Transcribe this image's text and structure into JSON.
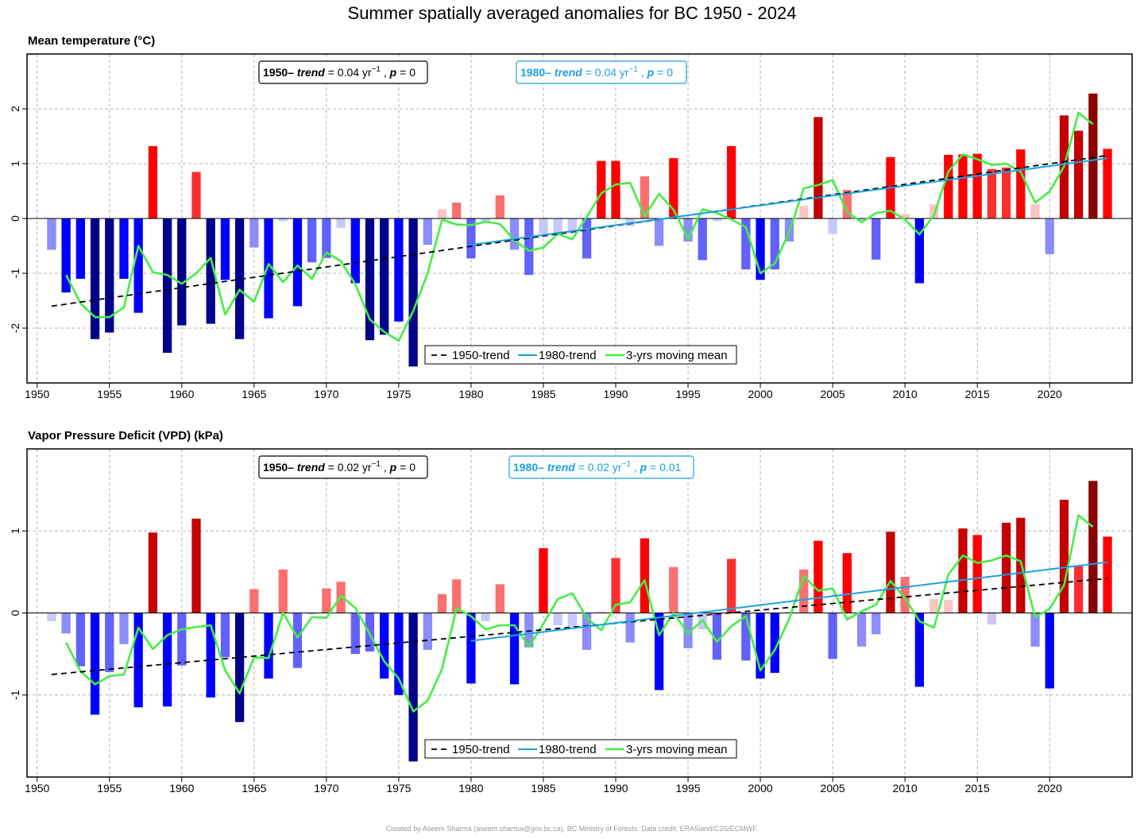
{
  "page": {
    "title": "Summer spatially averaged anomalies for BC 1950 - 2024",
    "credit": "Created by Aseem Sharma (aseem.sharma@gov.bc.ca), BC Ministry of Forests. Data credit: ERA5land/C3S/ECMWF."
  },
  "colors": {
    "trend_1950": "#000000",
    "trend_1980": "#1ba1e2",
    "moving_mean": "#44ee44",
    "neg_palette": [
      "#c8c8f8",
      "#8c8cfa",
      "#6262fa",
      "#0000ff",
      "#00008b"
    ],
    "pos_palette": [
      "#fac4c4",
      "#fa7070",
      "#fa3030",
      "#ff0000",
      "#c40000",
      "#8b0000"
    ]
  },
  "chart_data": [
    {
      "type": "bar",
      "title": "Mean temperature  (°C)",
      "xlim": [
        1949.3,
        2025.7
      ],
      "ylim": [
        -3.0,
        3.0
      ],
      "xticks": [
        1950,
        1955,
        1960,
        1965,
        1970,
        1975,
        1980,
        1985,
        1990,
        1995,
        2000,
        2005,
        2010,
        2015,
        2020
      ],
      "yticks": [
        -2,
        -1,
        0,
        1,
        2
      ],
      "grid": true,
      "x": [
        1951,
        1952,
        1953,
        1954,
        1955,
        1956,
        1957,
        1958,
        1959,
        1960,
        1961,
        1962,
        1963,
        1964,
        1965,
        1966,
        1967,
        1968,
        1969,
        1970,
        1971,
        1972,
        1973,
        1974,
        1975,
        1976,
        1977,
        1978,
        1979,
        1980,
        1981,
        1982,
        1983,
        1984,
        1985,
        1986,
        1987,
        1988,
        1989,
        1990,
        1991,
        1992,
        1993,
        1994,
        1995,
        1996,
        1997,
        1998,
        1999,
        2000,
        2001,
        2002,
        2003,
        2004,
        2005,
        2006,
        2007,
        2008,
        2009,
        2010,
        2011,
        2012,
        2013,
        2014,
        2015,
        2016,
        2017,
        2018,
        2019,
        2020,
        2021,
        2022,
        2023,
        2024
      ],
      "values": [
        -0.57,
        -1.35,
        -1.1,
        -2.2,
        -2.08,
        -1.1,
        -1.72,
        1.32,
        -2.45,
        -1.95,
        0.85,
        -1.92,
        -1.12,
        -2.2,
        -0.53,
        -1.82,
        -0.05,
        -1.6,
        -0.8,
        -0.72,
        -0.17,
        -1.18,
        -2.22,
        -2.12,
        -1.88,
        -2.7,
        -0.48,
        0.17,
        0.29,
        -0.73,
        -0.08,
        0.42,
        -0.57,
        -1.03,
        -0.28,
        -0.3,
        -0.27,
        -0.73,
        1.05,
        1.05,
        -0.14,
        0.77,
        -0.5,
        1.1,
        -0.42,
        -0.76,
        -0.05,
        1.32,
        -0.93,
        -1.12,
        -0.93,
        -0.42,
        0.23,
        1.85,
        -0.28,
        0.52,
        -0.05,
        -0.75,
        1.12,
        0.08,
        -1.18,
        0.26,
        1.16,
        1.17,
        1.18,
        0.9,
        0.93,
        1.26,
        0.26,
        -0.65,
        1.88,
        1.6,
        2.28,
        1.27
      ],
      "moving_mean": [
        null,
        -1.03,
        -1.55,
        -1.8,
        -1.8,
        -1.62,
        -0.5,
        -0.98,
        -1.03,
        -1.19,
        -1.0,
        -0.72,
        -1.75,
        -1.3,
        -1.52,
        -0.83,
        -1.16,
        -0.86,
        -1.1,
        -0.62,
        -0.78,
        -1.2,
        -1.84,
        -2.07,
        -2.23,
        -1.69,
        -1.0,
        -0.02,
        -0.11,
        -0.12,
        -0.06,
        -0.1,
        -0.4,
        -0.59,
        -0.53,
        -0.28,
        -0.38,
        0.03,
        0.46,
        0.62,
        0.65,
        0.04,
        0.45,
        0.16,
        -0.37,
        0.17,
        0.1,
        -0.02,
        -0.16,
        -1.0,
        -0.82,
        -0.24,
        0.55,
        0.61,
        0.7,
        0.12,
        -0.07,
        0.1,
        0.14,
        -0.02,
        -0.29,
        0.06,
        0.86,
        1.17,
        1.08,
        0.98,
        1.0,
        0.85,
        0.29,
        0.49,
        0.95,
        1.93,
        1.72,
        null
      ],
      "trend_1950": {
        "x": [
          1951,
          2024
        ],
        "y": [
          -1.6,
          1.15
        ]
      },
      "trend_1980": {
        "x": [
          1980,
          2024
        ],
        "y": [
          -0.48,
          1.1
        ]
      },
      "annotations": [
        {
          "prefix": "1950–",
          "trend": "0.04",
          "p": "0"
        },
        {
          "prefix": "1980–",
          "trend": "0.04",
          "p": "0"
        }
      ],
      "legend": {
        "placement": "bottom-right",
        "items": [
          "1950-trend",
          "1980-trend",
          "3-yrs moving mean"
        ]
      }
    },
    {
      "type": "bar",
      "title": "Vapor Pressure Deficit (VPD)  (kPa)",
      "xlim": [
        1949.3,
        2025.7
      ],
      "ylim": [
        -2.0,
        2.0
      ],
      "xticks": [
        1950,
        1955,
        1960,
        1965,
        1970,
        1975,
        1980,
        1985,
        1990,
        1995,
        2000,
        2005,
        2010,
        2015,
        2020
      ],
      "yticks": [
        -1,
        0,
        1
      ],
      "grid": true,
      "x": [
        1951,
        1952,
        1953,
        1954,
        1955,
        1956,
        1957,
        1958,
        1959,
        1960,
        1961,
        1962,
        1963,
        1964,
        1965,
        1966,
        1967,
        1968,
        1969,
        1970,
        1971,
        1972,
        1973,
        1974,
        1975,
        1976,
        1977,
        1978,
        1979,
        1980,
        1981,
        1982,
        1983,
        1984,
        1985,
        1986,
        1987,
        1988,
        1989,
        1990,
        1991,
        1992,
        1993,
        1994,
        1995,
        1996,
        1997,
        1998,
        1999,
        2000,
        2001,
        2002,
        2003,
        2004,
        2005,
        2006,
        2007,
        2008,
        2009,
        2010,
        2011,
        2012,
        2013,
        2014,
        2015,
        2016,
        2017,
        2018,
        2019,
        2020,
        2021,
        2022,
        2023,
        2024
      ],
      "values": [
        -0.1,
        -0.25,
        -0.65,
        -1.24,
        -0.72,
        -0.38,
        -1.15,
        0.98,
        -1.14,
        -0.64,
        1.15,
        -1.03,
        -0.54,
        -1.33,
        0.29,
        -0.8,
        0.53,
        -0.67,
        -0.02,
        0.3,
        0.38,
        -0.5,
        -0.47,
        -0.8,
        -1.0,
        -1.81,
        -0.45,
        0.23,
        0.41,
        -0.86,
        -0.1,
        0.35,
        -0.87,
        -0.42,
        0.79,
        -0.15,
        -0.17,
        -0.45,
        0.02,
        0.67,
        -0.36,
        0.91,
        -0.94,
        0.56,
        -0.43,
        -0.2,
        -0.57,
        0.66,
        -0.58,
        -0.8,
        -0.73,
        0.02,
        0.53,
        0.88,
        -0.56,
        0.73,
        -0.41,
        -0.26,
        0.99,
        0.44,
        -0.9,
        0.17,
        0.16,
        1.03,
        0.95,
        -0.14,
        1.1,
        1.16,
        -0.41,
        -0.92,
        1.38,
        0.57,
        1.61,
        0.93
      ],
      "moving_mean": [
        null,
        -0.36,
        -0.71,
        -0.87,
        -0.77,
        -0.75,
        -0.18,
        -0.44,
        -0.27,
        -0.2,
        -0.17,
        -0.15,
        -0.7,
        -0.98,
        -0.54,
        -0.55,
        0.0,
        -0.3,
        -0.05,
        -0.06,
        0.21,
        0.06,
        -0.26,
        -0.59,
        -0.8,
        -1.2,
        -1.07,
        -0.68,
        0.06,
        -0.04,
        -0.2,
        -0.15,
        -0.15,
        -0.41,
        -0.13,
        0.17,
        0.24,
        -0.06,
        -0.21,
        0.1,
        0.13,
        0.4,
        -0.27,
        0.0,
        -0.25,
        -0.09,
        -0.35,
        -0.16,
        -0.04,
        -0.7,
        -0.45,
        -0.07,
        0.45,
        0.27,
        0.3,
        -0.08,
        0.02,
        0.1,
        0.39,
        0.18,
        -0.1,
        -0.18,
        0.47,
        0.7,
        0.61,
        0.64,
        0.7,
        0.63,
        -0.05,
        0.05,
        0.34,
        1.19,
        1.05,
        null
      ],
      "trend_1950": {
        "x": [
          1951,
          2024
        ],
        "y": [
          -0.75,
          0.42
        ]
      },
      "trend_1980": {
        "x": [
          1980,
          2024
        ],
        "y": [
          -0.34,
          0.62
        ]
      },
      "annotations": [
        {
          "prefix": "1950–",
          "trend": "0.02",
          "p": "0"
        },
        {
          "prefix": "1980–",
          "trend": "0.02",
          "p": "0.01"
        }
      ],
      "legend": {
        "placement": "bottom-right",
        "items": [
          "1950-trend",
          "1980-trend",
          "3-yrs moving mean"
        ]
      }
    }
  ]
}
